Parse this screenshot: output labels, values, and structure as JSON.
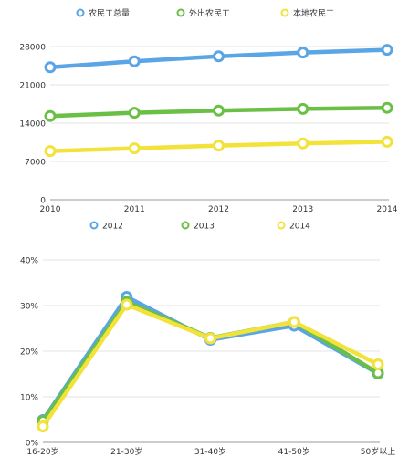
{
  "chart_data": [
    {
      "type": "line",
      "x": [
        2010,
        2011,
        2012,
        2013,
        2014
      ],
      "xticks": [
        "2010",
        "2011",
        "2012",
        "2013",
        "2014"
      ],
      "yticks": [
        "0",
        "7000",
        "14000",
        "21000",
        "28000"
      ],
      "ylim": [
        0,
        28000
      ],
      "grid": true,
      "legend_position": "top",
      "series": [
        {
          "name": "农民工总量",
          "color": "#5aa5e6",
          "values": [
            24200,
            25300,
            26200,
            26900,
            27400
          ]
        },
        {
          "name": "外出农民工",
          "color": "#6abf45",
          "values": [
            15300,
            15900,
            16300,
            16600,
            16800
          ]
        },
        {
          "name": "本地农民工",
          "color": "#f2e23a",
          "values": [
            8900,
            9400,
            9900,
            10300,
            10600
          ]
        }
      ]
    },
    {
      "type": "line",
      "categories": [
        "16-20岁",
        "21-30岁",
        "31-40岁",
        "41-50岁",
        "50岁以上"
      ],
      "yticks": [
        "0%",
        "10%",
        "20%",
        "30%",
        "40%"
      ],
      "ylim": [
        0,
        40
      ],
      "grid": true,
      "legend_position": "top",
      "series": [
        {
          "name": "2012",
          "color": "#5aa5e6",
          "values": [
            4.9,
            31.9,
            22.5,
            25.6,
            15.1
          ]
        },
        {
          "name": "2013",
          "color": "#6abf45",
          "values": [
            4.7,
            30.8,
            22.9,
            26.4,
            15.2
          ]
        },
        {
          "name": "2014",
          "color": "#f2e23a",
          "values": [
            3.5,
            30.2,
            22.8,
            26.4,
            17.1
          ]
        }
      ]
    }
  ]
}
